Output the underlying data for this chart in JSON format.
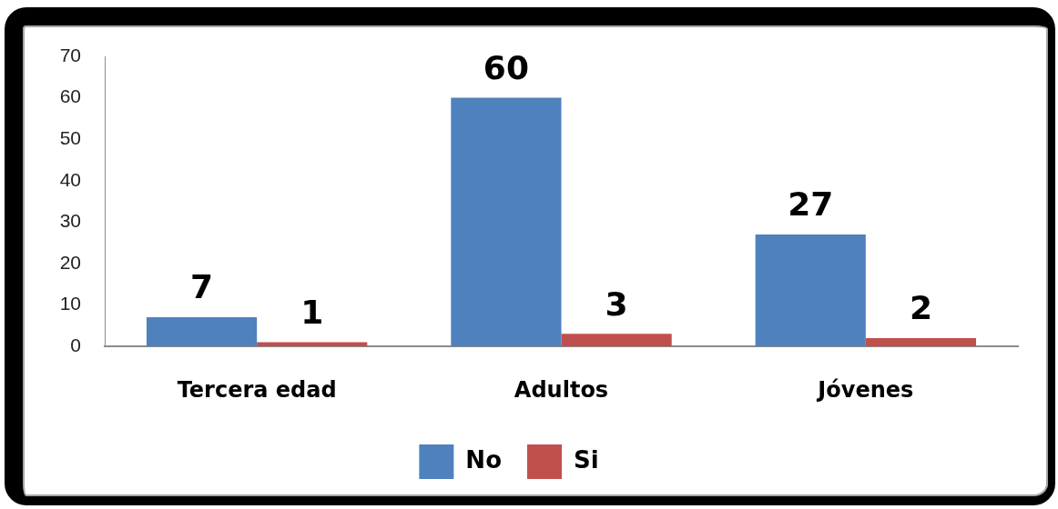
{
  "chart_data": {
    "type": "bar",
    "categories": [
      "Tercera edad",
      "Adultos",
      "Jóvenes"
    ],
    "series": [
      {
        "name": "No",
        "color": "#4f81bd",
        "values": [
          7,
          60,
          27
        ]
      },
      {
        "name": "Si",
        "color": "#c0504d",
        "values": [
          1,
          3,
          2
        ]
      }
    ],
    "ylim": [
      0,
      70
    ],
    "yticks": [
      0,
      10,
      20,
      30,
      40,
      50,
      60,
      70
    ],
    "grid": false,
    "legend": "bottom",
    "data_labels": true
  }
}
